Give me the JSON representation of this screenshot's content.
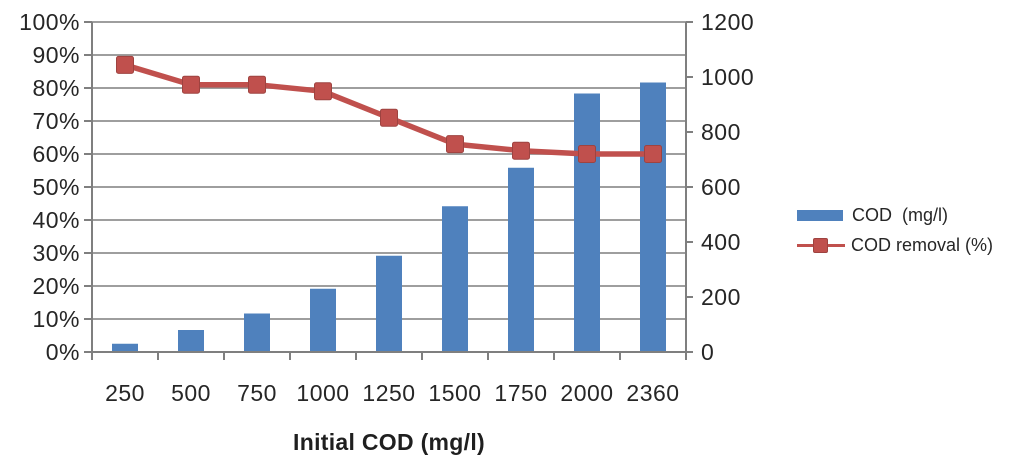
{
  "chart_data": {
    "type": "combo-bar-line",
    "categories": [
      "250",
      "500",
      "750",
      "1000",
      "1250",
      "1500",
      "1750",
      "2000",
      "2360"
    ],
    "series": [
      {
        "name": "COD  (mg/l)",
        "type": "bar",
        "axis": "right",
        "color": "#4f81bd",
        "values": [
          30,
          80,
          140,
          230,
          350,
          530,
          670,
          940,
          980
        ]
      },
      {
        "name": "COD removal (%)",
        "type": "line",
        "axis": "left",
        "color": "#c0504d",
        "marker": "square",
        "values": [
          87,
          81,
          81,
          79,
          71,
          63,
          61,
          60,
          60
        ]
      }
    ],
    "title": "",
    "xlabel": "Initial COD (mg/l)",
    "left_axis": {
      "min": 0,
      "max": 100,
      "step": 10,
      "format": "percent",
      "tick_labels": [
        "0%",
        "10%",
        "20%",
        "30%",
        "40%",
        "50%",
        "60%",
        "70%",
        "80%",
        "90%",
        "100%"
      ]
    },
    "right_axis": {
      "min": 0,
      "max": 1200,
      "step": 200,
      "tick_labels": [
        "0",
        "200",
        "400",
        "600",
        "800",
        "1000",
        "1200"
      ]
    },
    "grid": true,
    "legend_position": "right"
  },
  "legend": {
    "items": [
      {
        "label": "COD  (mg/l)",
        "swatch": "bar",
        "color": "#4f81bd"
      },
      {
        "label": "COD removal (%)",
        "swatch": "line-marker",
        "color": "#c0504d"
      }
    ]
  },
  "colors": {
    "bar": "#4f81bd",
    "line": "#c0504d",
    "marker_border": "#9e4340",
    "grid": "#909090",
    "axis": "#7f7f7f",
    "text": "#262626",
    "background": "#ffffff"
  }
}
